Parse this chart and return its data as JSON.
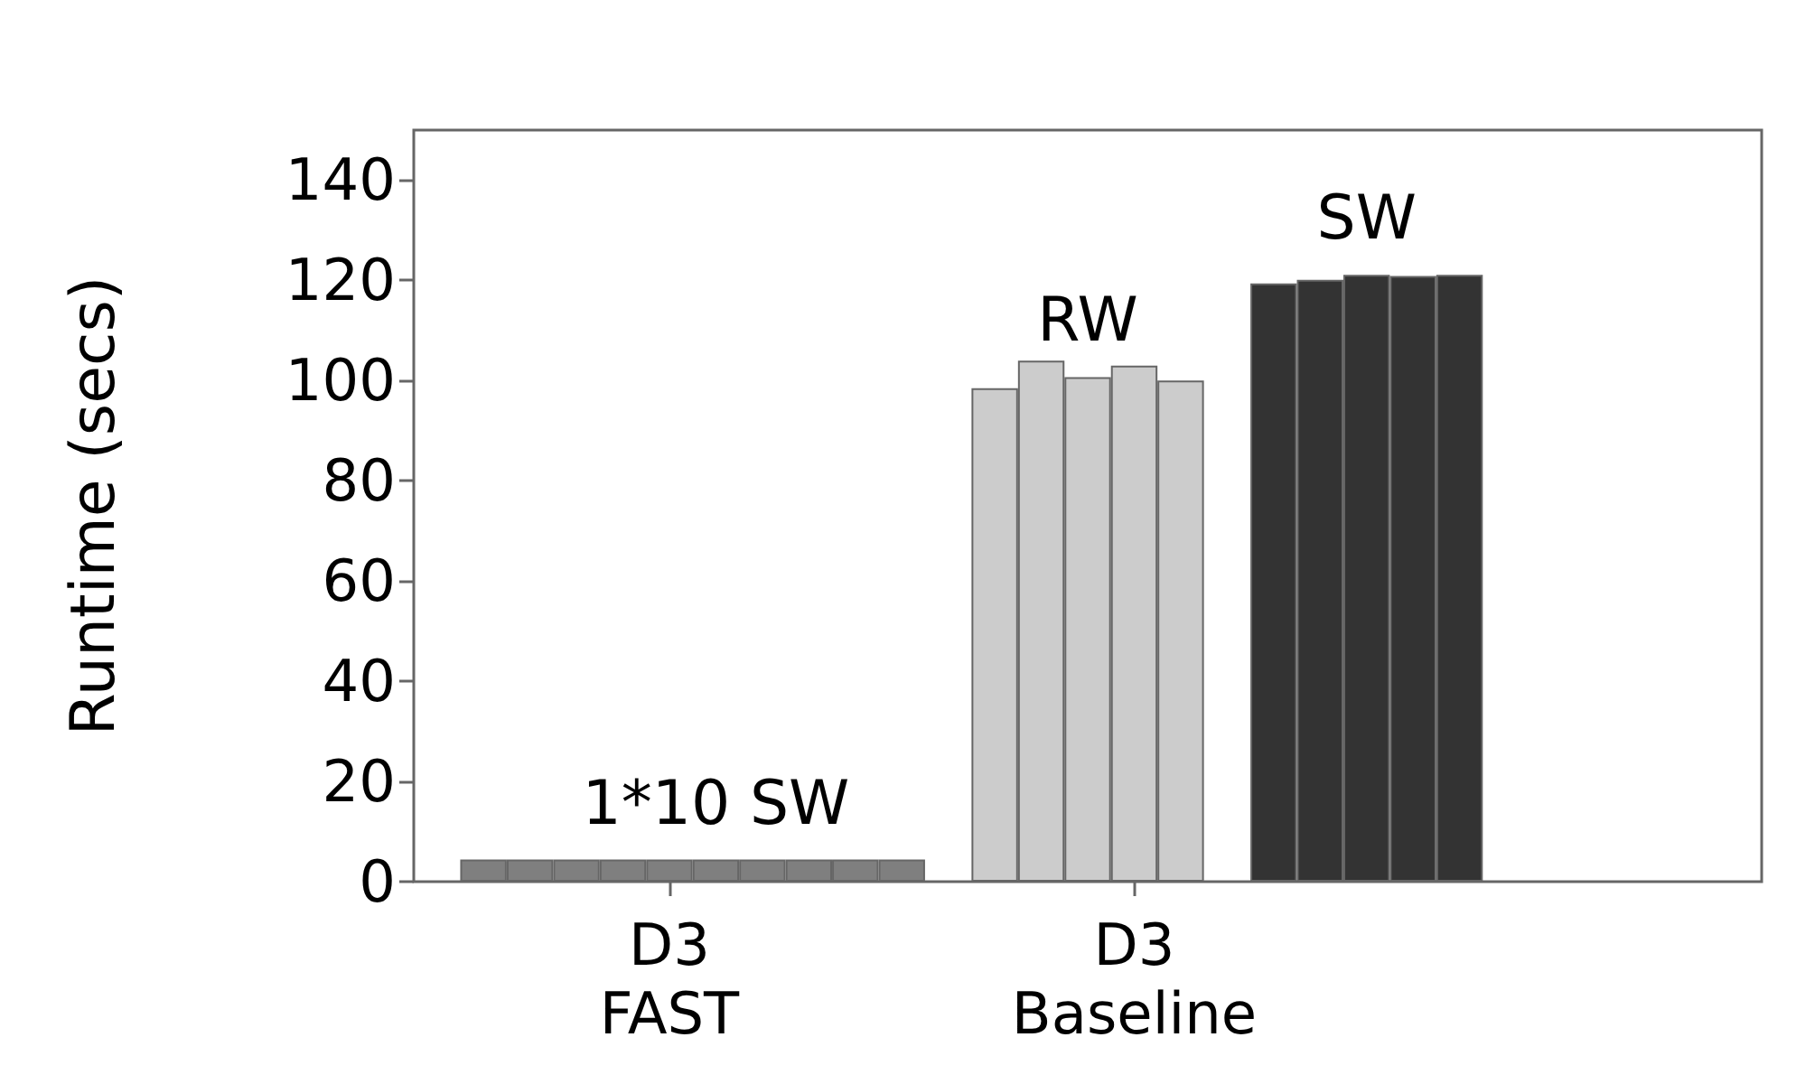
{
  "chart_data": {
    "type": "bar",
    "ylabel": "Runtime (secs)",
    "categories": [
      null,
      null,
      null,
      null,
      null,
      "D3\nFAST",
      null,
      null,
      null,
      null,
      null,
      null,
      null,
      null,
      null,
      "D3\nBaseline",
      null,
      null,
      null,
      null,
      null,
      null,
      null,
      null,
      null,
      null,
      null,
      null,
      null
    ],
    "ylim": [
      0,
      150
    ],
    "yticks": [
      0,
      20,
      40,
      60,
      80,
      100,
      120,
      140
    ],
    "series": [
      {
        "name": "1*10 SW",
        "color": "#7f7f7f",
        "values": [
          null,
          4.4,
          4.4,
          4.4,
          4.4,
          4.4,
          4.4,
          4.4,
          4.4,
          4.4,
          4.4,
          null,
          null,
          null,
          null,
          null,
          null,
          null,
          null,
          null,
          null,
          null,
          null,
          null,
          null,
          null,
          null,
          null,
          null
        ]
      },
      {
        "name": "RW",
        "color": "#cccccc",
        "values": [
          null,
          null,
          null,
          null,
          null,
          null,
          null,
          null,
          null,
          null,
          null,
          null,
          98.5,
          104,
          100.7,
          103,
          100,
          null,
          null,
          null,
          null,
          null,
          null,
          null,
          null,
          null,
          null,
          null,
          null
        ]
      },
      {
        "name": "SW",
        "color": "#333333",
        "values": [
          null,
          null,
          null,
          null,
          null,
          null,
          null,
          null,
          null,
          null,
          null,
          null,
          null,
          null,
          null,
          null,
          null,
          null,
          119.4,
          120.1,
          121.1,
          120.9,
          121.1,
          null,
          null,
          null,
          null,
          null,
          null
        ]
      }
    ],
    "legend": false,
    "grid": false
  }
}
